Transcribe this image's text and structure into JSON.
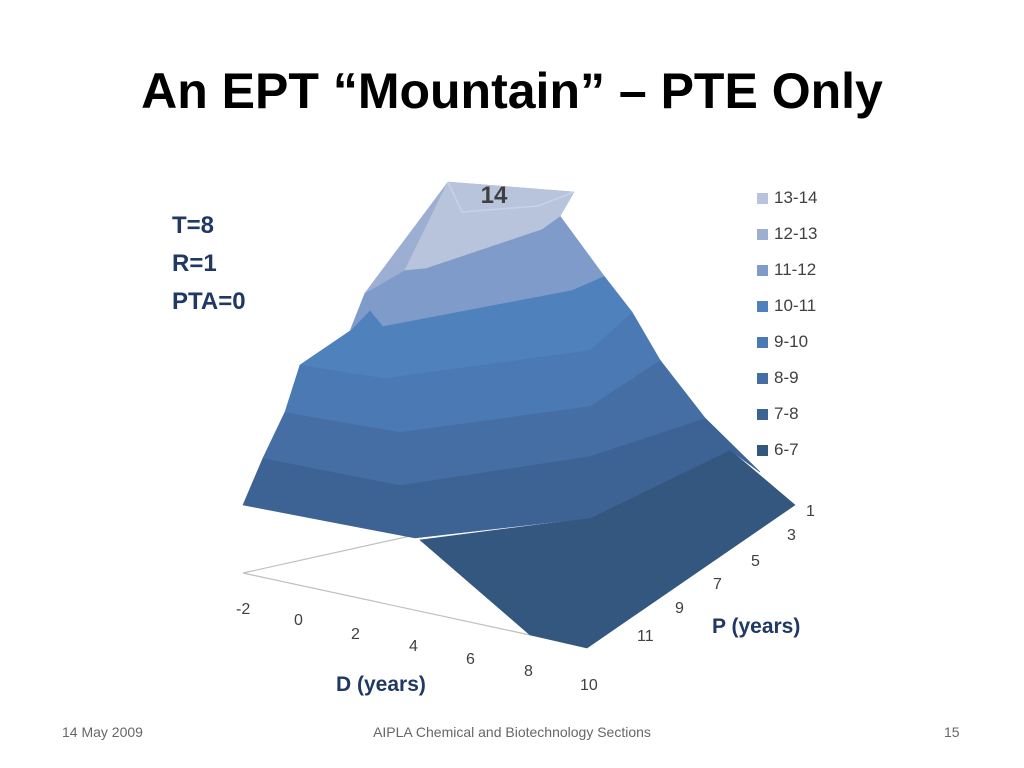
{
  "slide": {
    "title": "An EPT “Mountain” – PTE Only",
    "params": [
      "T=8",
      "R=1",
      "PTA=0"
    ],
    "footer": {
      "date": "14 May 2009",
      "center": "AIPLA Chemical and Biotechnology Sections",
      "page": "15"
    }
  },
  "chart_data": {
    "type": "surface",
    "title": "",
    "peak_label": "14",
    "x_axis": {
      "label": "D (years)",
      "ticks": [
        "-2",
        "0",
        "2",
        "4",
        "6",
        "8",
        "10"
      ]
    },
    "y_axis": {
      "label": "P (years)",
      "ticks": [
        "1",
        "3",
        "5",
        "7",
        "9",
        "11"
      ]
    },
    "z_range": [
      6,
      14
    ],
    "legend_position": "right",
    "bands": [
      {
        "range": "13-14",
        "color": "#b8c4dc"
      },
      {
        "range": "12-13",
        "color": "#9caed2"
      },
      {
        "range": "11-12",
        "color": "#7f9bc9"
      },
      {
        "range": "10-11",
        "color": "#4f81bd"
      },
      {
        "range": "9-10",
        "color": "#4a79b3"
      },
      {
        "range": "8-9",
        "color": "#456ea4"
      },
      {
        "range": "7-8",
        "color": "#3d6394"
      },
      {
        "range": "6-7",
        "color": "#345780"
      }
    ]
  }
}
